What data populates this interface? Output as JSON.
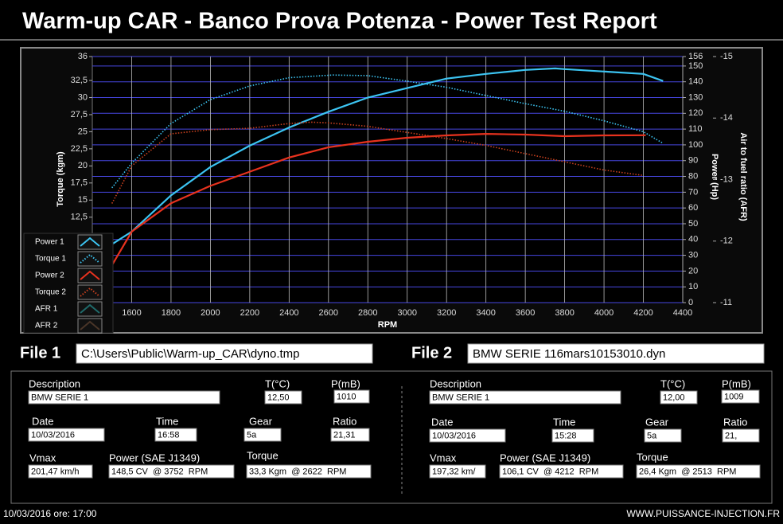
{
  "header": {
    "title": "Warm-up CAR  - Banco Prova Potenza -  Power Test Report"
  },
  "chart_data": {
    "type": "line",
    "x_label": "RPM",
    "y_label": "Torque (kgm)",
    "y2_label": "Power (Hp)",
    "y3_label": "Air to fuel ratio (AFR)",
    "xlim": [
      1400,
      4400
    ],
    "xticks": [
      1600,
      1800,
      2000,
      2200,
      2400,
      2600,
      2800,
      3000,
      3200,
      3400,
      3600,
      3800,
      4000,
      4200,
      4400
    ],
    "ylim": [
      0,
      36
    ],
    "yticks": [
      36,
      {
        "value": 32.5,
        "label": "32,5"
      },
      30,
      {
        "value": 27.5,
        "label": "27,5"
      },
      25,
      {
        "value": 22.5,
        "label": "22,5"
      },
      20,
      {
        "value": 17.5,
        "label": "17,5"
      },
      15,
      {
        "value": 12.5,
        "label": "12,5"
      }
    ],
    "y2lim": [
      0,
      156
    ],
    "y2ticks": [
      0,
      10,
      20,
      30,
      40,
      50,
      60,
      70,
      80,
      90,
      100,
      110,
      120,
      130,
      140,
      150,
      156
    ],
    "y3lim": [
      -11,
      -15
    ],
    "y3ticks": [
      -15,
      -14,
      -13,
      -12,
      -11
    ],
    "grid": true,
    "legend": "bottom-left",
    "series": [
      {
        "name": "Power 1",
        "color": "#3cc4f2",
        "style": "solid",
        "axis": "y2",
        "x": [
          1500,
          1600,
          1800,
          2000,
          2200,
          2400,
          2600,
          2800,
          3000,
          3200,
          3400,
          3600,
          3752,
          3800,
          4000,
          4200,
          4300
        ],
        "values": [
          37,
          45,
          68,
          86,
          99.5,
          111,
          121,
          130,
          136,
          142,
          145,
          147.5,
          148.5,
          148,
          146.5,
          145,
          140.5
        ]
      },
      {
        "name": "Torque 1",
        "color": "#3cc4f2",
        "style": "dotted",
        "axis": "y",
        "x": [
          1500,
          1600,
          1800,
          2000,
          2200,
          2400,
          2622,
          2800,
          3000,
          3200,
          3400,
          3600,
          3800,
          4000,
          4200,
          4300
        ],
        "values": [
          16.8,
          20.4,
          26.2,
          29.7,
          31.7,
          32.9,
          33.3,
          33.2,
          32.4,
          31.5,
          30.3,
          29.1,
          28,
          26.6,
          25,
          23.3
        ]
      },
      {
        "name": "Power 2",
        "color": "#e8321e",
        "style": "solid",
        "axis": "y2",
        "x": [
          1500,
          1600,
          1800,
          2000,
          2200,
          2400,
          2600,
          2800,
          3000,
          3200,
          3400,
          3600,
          3800,
          4000,
          4212
        ],
        "values": [
          23.7,
          45,
          63,
          74,
          83,
          92,
          98.5,
          102,
          104.5,
          106,
          107,
          106.5,
          105.5,
          106,
          106.1
        ]
      },
      {
        "name": "Torque 2",
        "color": "#c8401e",
        "style": "dotted",
        "axis": "y",
        "x": [
          1500,
          1600,
          1800,
          2000,
          2200,
          2400,
          2513,
          2600,
          2800,
          3000,
          3200,
          3400,
          3600,
          3800,
          4000,
          4200
        ],
        "values": [
          14.5,
          20,
          24.7,
          25.3,
          25.5,
          26.2,
          26.4,
          26.3,
          25.8,
          24.9,
          24,
          23,
          21.8,
          20.6,
          19.4,
          18.6
        ]
      },
      {
        "name": "AFR 1",
        "color": "#1f6b6b",
        "style": "solid",
        "axis": "y3",
        "x": [],
        "values": []
      },
      {
        "name": "AFR 2",
        "color": "#4a3528",
        "style": "solid",
        "axis": "y3",
        "x": [],
        "values": []
      }
    ]
  },
  "files": [
    {
      "label": "File 1",
      "path": "C:\\Users\\Public\\Warm-up_CAR\\dyno.tmp"
    },
    {
      "label": "File 2",
      "path": "BMW SERIE 116mars10153010.dyn"
    }
  ],
  "panels": [
    {
      "description_label": "Description",
      "description": "BMW SERIE 1",
      "temp_label": "T(°C)",
      "temp": "12,50",
      "pressure_label": "P(mB)",
      "pressure": "1010",
      "date_label": "Date",
      "date": "10/03/2016",
      "time_label": "Time",
      "time": "16:58",
      "gear_label": "Gear",
      "gear": "5a",
      "ratio_label": "Ratio",
      "ratio": "21,31",
      "vmax_label": "Vmax",
      "vmax": "201,47 km/h",
      "power_label": "Power (SAE J1349)",
      "power": "148,5 CV  @ 3752  RPM",
      "torque_label": "Torque",
      "torque": "33,3 Kgm  @ 2622  RPM"
    },
    {
      "description_label": "Description",
      "description": "BMW SERIE 1",
      "temp_label": "T(°C)",
      "temp": "12,00",
      "pressure_label": "P(mB)",
      "pressure": "1009",
      "date_label": "Date",
      "date": "10/03/2016",
      "time_label": "Time",
      "time": "15:28",
      "gear_label": "Gear",
      "gear": "5a",
      "ratio_label": "Ratio",
      "ratio": "21,",
      "vmax_label": "Vmax",
      "vmax": "197,32 km/",
      "power_label": "Power (SAE J1349)",
      "power": "106,1 CV  @ 4212  RPM",
      "torque_label": "Torque",
      "torque": "26,4 Kgm  @ 2513  RPM"
    }
  ],
  "footer": {
    "left": "10/03/2016  ore: 17:00",
    "right": "WWW.PUISSANCE-INJECTION.FR"
  }
}
